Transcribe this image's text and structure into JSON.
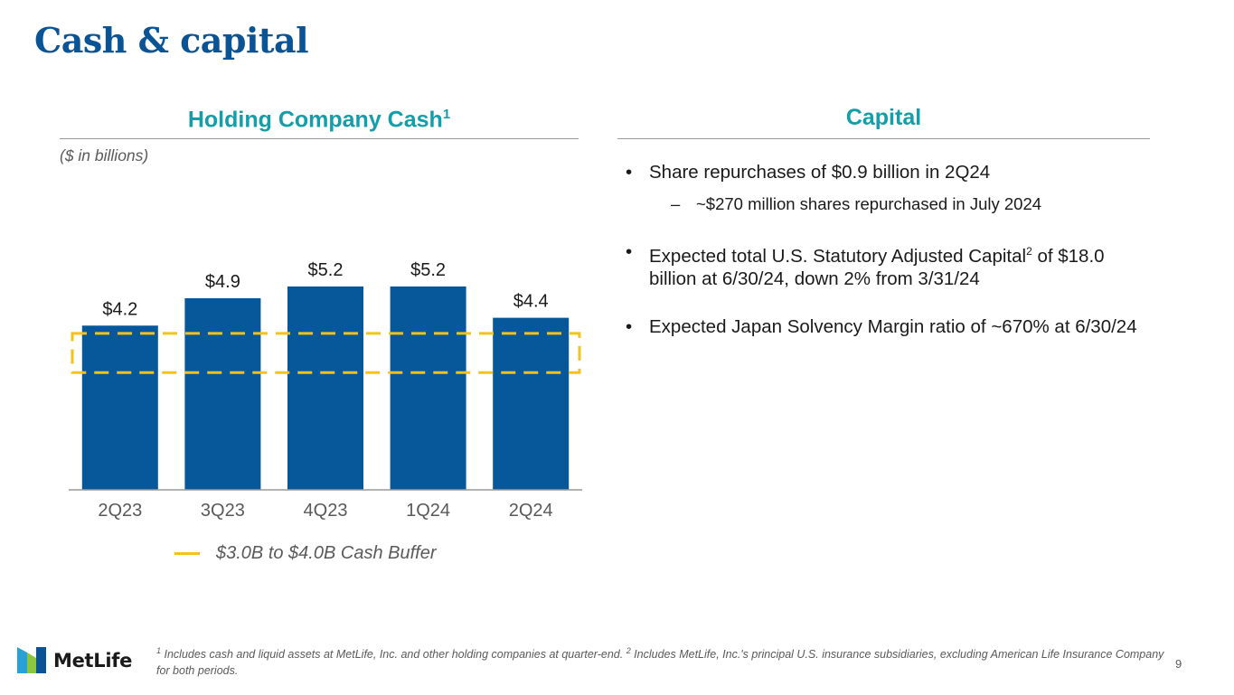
{
  "page": {
    "title": "Cash & capital",
    "page_number": "9"
  },
  "left_section": {
    "title": "Holding Company Cash",
    "title_sup": "1",
    "units": "($ in billions)",
    "legend_label": "$3.0B to $4.0B Cash Buffer"
  },
  "right_section": {
    "title": "Capital",
    "bullet_marker": "•",
    "sub_marker": "–",
    "bullets": [
      {
        "text": "Share repurchases of $0.9 billion in 2Q24",
        "sub": "~$270 million shares repurchased in July 2024"
      },
      {
        "text_before": "Expected total U.S. Statutory Adjusted Capital",
        "sup": "2",
        "text_after": " of $18.0 billion at 6/30/24, down 2% from 3/31/24"
      },
      {
        "text": "Expected Japan Solvency Margin ratio of ~670% at 6/30/24"
      }
    ]
  },
  "footnote": {
    "sup1": "1",
    "text1": " Includes cash and liquid assets at MetLife, Inc. and other holding companies at quarter-end. ",
    "sup2": "2",
    "text2": " Includes MetLife, Inc.'s principal U.S. insurance subsidiaries, excluding American Life Insurance Company for both periods."
  },
  "logo": {
    "text": "MetLife",
    "icon": "metlife-logo-icon"
  },
  "colors": {
    "bar": "#07579b",
    "buffer": "#f5c21a",
    "title": "#0a5495",
    "section_title": "#139ea9"
  },
  "chart_data": {
    "type": "bar",
    "title": "Holding Company Cash",
    "ylabel": "$ in billions",
    "categories": [
      "2Q23",
      "3Q23",
      "4Q23",
      "1Q24",
      "2Q24"
    ],
    "values": [
      4.2,
      4.9,
      5.2,
      5.2,
      4.4
    ],
    "value_labels": [
      "$4.2",
      "$4.9",
      "$5.2",
      "$5.2",
      "$4.4"
    ],
    "ylim": [
      0,
      5.2
    ],
    "grid": false,
    "reference_band": {
      "label": "$3.0B to $4.0B Cash Buffer",
      "low": 3.0,
      "high": 4.0,
      "style": "dashed"
    }
  }
}
